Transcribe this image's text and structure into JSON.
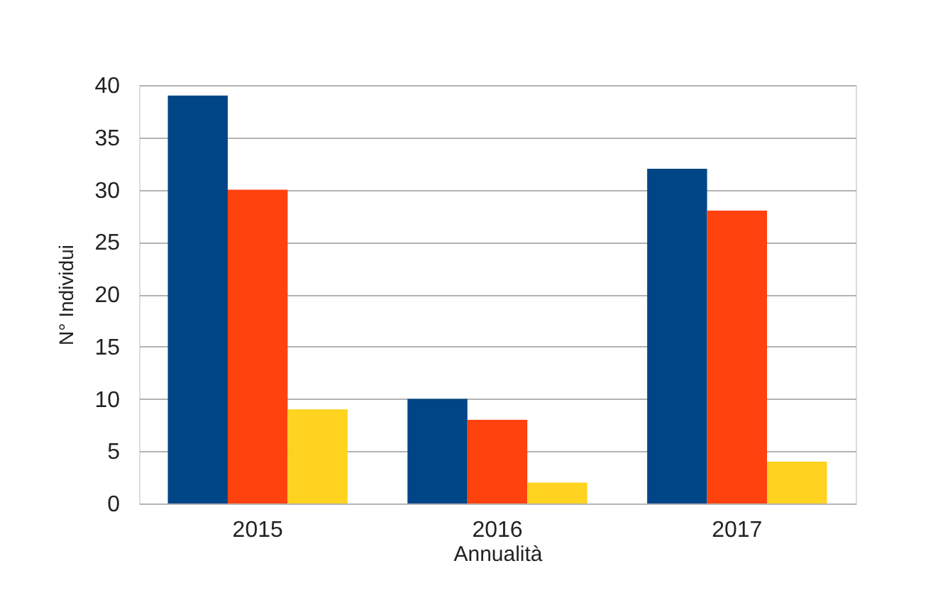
{
  "chart_data": {
    "type": "bar",
    "xlabel": "Annualità",
    "ylabel": "N° Individui",
    "categories": [
      "2015",
      "2016",
      "2017"
    ],
    "series": [
      {
        "color": "#004586",
        "values": [
          39,
          10,
          32
        ]
      },
      {
        "color": "#ff420e",
        "values": [
          30,
          8,
          28
        ]
      },
      {
        "color": "#ffd320",
        "values": [
          9,
          2,
          4
        ]
      }
    ],
    "ylim": [
      0,
      40
    ],
    "yticks": [
      0,
      5,
      10,
      15,
      20,
      25,
      30,
      35,
      40
    ],
    "grid": "y"
  }
}
